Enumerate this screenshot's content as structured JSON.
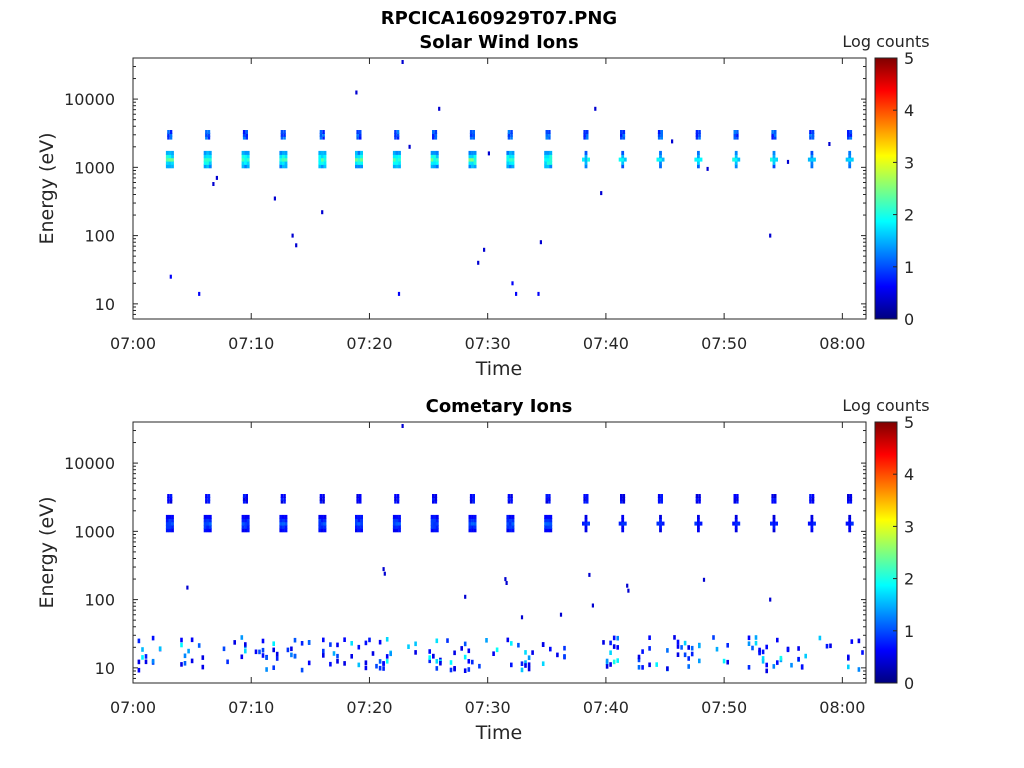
{
  "figure_title": "RPCICA160929T07.PNG",
  "colors": {
    "colormap": [
      "#00007f",
      "#0000ff",
      "#007fff",
      "#00ffff",
      "#7fff7f",
      "#ffff00",
      "#ff7f00",
      "#ff0000",
      "#7f0000"
    ],
    "axis": "#262626"
  },
  "chart_data": [
    {
      "type": "heatmap",
      "title": "Solar Wind Ions",
      "xlabel": "Time",
      "ylabel": "Energy (eV)",
      "x_ticks": [
        "07:00",
        "07:10",
        "07:20",
        "07:30",
        "07:40",
        "07:50",
        "08:00"
      ],
      "x_range_min": [
        0,
        62
      ],
      "y_scale": "log",
      "y_ticks": [
        10,
        100,
        1000,
        10000
      ],
      "y_range": [
        6,
        40000
      ],
      "colorbar": {
        "label": "Log counts",
        "range": [
          0,
          5
        ],
        "ticks": [
          0,
          1,
          2,
          3,
          4,
          5
        ]
      },
      "sweep_start_min": [
        2.9,
        6.1,
        9.3,
        12.5,
        15.8,
        18.9,
        22.1,
        25.3,
        28.5,
        31.7,
        34.9,
        38.1,
        41.2,
        44.4,
        47.6,
        50.8,
        54.0,
        57.2,
        60.4
      ],
      "peak_energy_eV": 1300,
      "peak_log_counts": 2.2,
      "upper_energy_eV": 3000,
      "upper_log_counts": 1.0,
      "scatter": [
        {
          "t": 3.2,
          "e": 25,
          "v": 0.6
        },
        {
          "t": 5.6,
          "e": 14,
          "v": 0.6
        },
        {
          "t": 6.8,
          "e": 570,
          "v": 0.4
        },
        {
          "t": 7.1,
          "e": 700,
          "v": 0.4
        },
        {
          "t": 12.0,
          "e": 350,
          "v": 0.4
        },
        {
          "t": 13.5,
          "e": 100,
          "v": 0.4
        },
        {
          "t": 13.8,
          "e": 72,
          "v": 0.4
        },
        {
          "t": 16.0,
          "e": 220,
          "v": 0.4
        },
        {
          "t": 18.9,
          "e": 12500,
          "v": 0.4
        },
        {
          "t": 22.5,
          "e": 14,
          "v": 0.6
        },
        {
          "t": 22.8,
          "e": 35000,
          "v": 0.4
        },
        {
          "t": 23.4,
          "e": 2000,
          "v": 0.4
        },
        {
          "t": 25.9,
          "e": 7200,
          "v": 0.4
        },
        {
          "t": 29.2,
          "e": 40,
          "v": 0.4
        },
        {
          "t": 29.7,
          "e": 62,
          "v": 0.4
        },
        {
          "t": 30.1,
          "e": 1600,
          "v": 0.4
        },
        {
          "t": 32.1,
          "e": 20,
          "v": 0.6
        },
        {
          "t": 32.4,
          "e": 14,
          "v": 0.6
        },
        {
          "t": 34.3,
          "e": 14,
          "v": 0.6
        },
        {
          "t": 34.5,
          "e": 80,
          "v": 0.4
        },
        {
          "t": 39.1,
          "e": 7200,
          "v": 0.4
        },
        {
          "t": 39.6,
          "e": 420,
          "v": 0.4
        },
        {
          "t": 45.6,
          "e": 2400,
          "v": 0.4
        },
        {
          "t": 48.6,
          "e": 950,
          "v": 0.4
        },
        {
          "t": 53.9,
          "e": 100,
          "v": 0.4
        },
        {
          "t": 55.4,
          "e": 1200,
          "v": 0.4
        },
        {
          "t": 58.9,
          "e": 2200,
          "v": 0.4
        }
      ]
    },
    {
      "type": "heatmap",
      "title": "Cometary Ions",
      "xlabel": "Time",
      "ylabel": "Energy (eV)",
      "x_ticks": [
        "07:00",
        "07:10",
        "07:20",
        "07:30",
        "07:40",
        "07:50",
        "08:00"
      ],
      "x_range_min": [
        0,
        62
      ],
      "y_scale": "log",
      "y_ticks": [
        10,
        100,
        1000,
        10000
      ],
      "y_range": [
        6,
        40000
      ],
      "colorbar": {
        "label": "Log counts",
        "range": [
          0,
          5
        ],
        "ticks": [
          0,
          1,
          2,
          3,
          4,
          5
        ]
      },
      "sweep_start_min": [
        2.9,
        6.1,
        9.3,
        12.5,
        15.8,
        18.9,
        22.1,
        25.3,
        28.5,
        31.7,
        34.9,
        38.1,
        41.2,
        44.4,
        47.6,
        50.8,
        54.0,
        57.2,
        60.4
      ],
      "peak_energy_eV": 1300,
      "peak_log_counts": 1.0,
      "upper_energy_eV": 3000,
      "upper_log_counts": 0.6,
      "low_energy_band_eV": [
        9,
        28
      ],
      "low_energy_log_counts_range": [
        0.5,
        2.0
      ],
      "scatter": [
        {
          "t": 4.6,
          "e": 150,
          "v": 0.4
        },
        {
          "t": 21.2,
          "e": 280,
          "v": 0.4
        },
        {
          "t": 21.3,
          "e": 240,
          "v": 0.4
        },
        {
          "t": 22.8,
          "e": 35000,
          "v": 0.4
        },
        {
          "t": 28.1,
          "e": 110,
          "v": 0.4
        },
        {
          "t": 31.5,
          "e": 200,
          "v": 0.4
        },
        {
          "t": 31.6,
          "e": 175,
          "v": 0.4
        },
        {
          "t": 32.9,
          "e": 55,
          "v": 0.4
        },
        {
          "t": 36.2,
          "e": 60,
          "v": 0.4
        },
        {
          "t": 38.6,
          "e": 230,
          "v": 0.4
        },
        {
          "t": 38.9,
          "e": 82,
          "v": 0.4
        },
        {
          "t": 41.8,
          "e": 160,
          "v": 0.4
        },
        {
          "t": 41.9,
          "e": 135,
          "v": 0.4
        },
        {
          "t": 48.3,
          "e": 195,
          "v": 0.4
        },
        {
          "t": 53.9,
          "e": 100,
          "v": 0.4
        }
      ]
    }
  ]
}
